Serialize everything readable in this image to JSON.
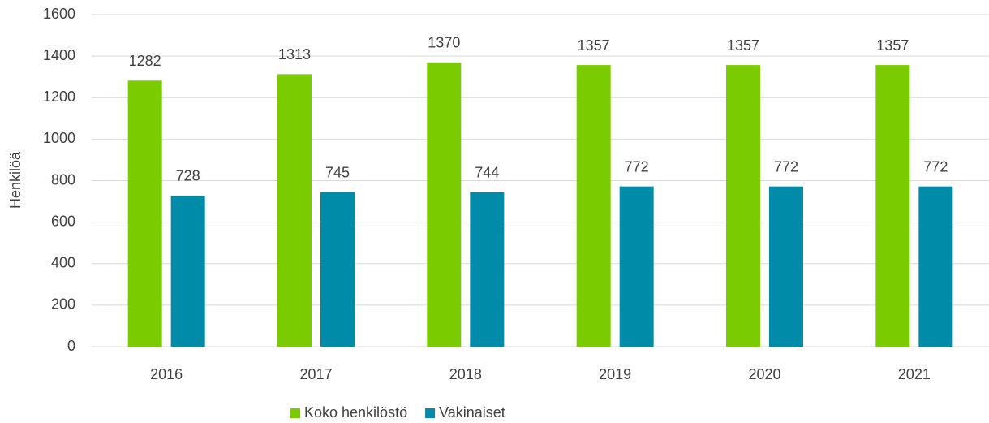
{
  "chart_data": {
    "type": "bar",
    "y_label": "Henkilöä",
    "categories": [
      "2016",
      "2017",
      "2018",
      "2019",
      "2020",
      "2021"
    ],
    "series": [
      {
        "name": "Koko henkilöstö",
        "color": "#7acc00",
        "values": [
          1282,
          1313,
          1370,
          1357,
          1357,
          1357
        ]
      },
      {
        "name": "Vakinaiset",
        "color": "#008ca8",
        "values": [
          728,
          745,
          744,
          772,
          772,
          772
        ]
      }
    ],
    "ylim": [
      0,
      1600
    ],
    "yticks": [
      0,
      200,
      400,
      600,
      800,
      1000,
      1200,
      1400,
      1600
    ],
    "grid": true,
    "legend": "bottom"
  }
}
